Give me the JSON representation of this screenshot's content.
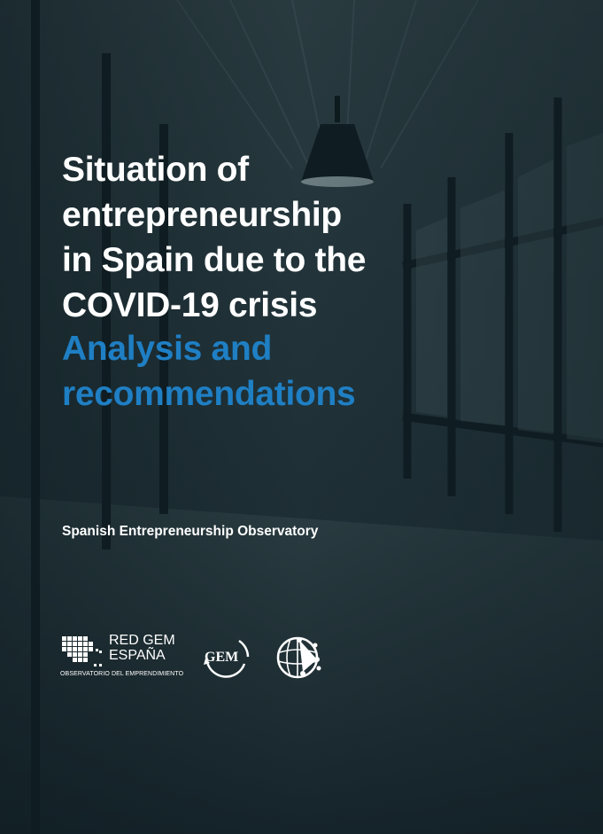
{
  "cover": {
    "title_lines": [
      "Situation of",
      "entrepreneurship",
      "in Spain due to the",
      "COVID-19 crisis"
    ],
    "subtitle_lines": [
      "Analysis and",
      "recommendations"
    ],
    "organization": "Spanish Entrepreneurship Observatory",
    "colors": {
      "title": "#ffffff",
      "subtitle": "#1f7fc4",
      "background": "#1e2f35"
    }
  },
  "logos": {
    "redgem": {
      "line1": "RED GEM",
      "line2": "ESPAÑA",
      "tagline": "OBSERVATORIO DEL EMPRENDIMIENTO"
    },
    "gem": {
      "text": "GEM"
    },
    "globe": {
      "icon": "globe-network-icon"
    }
  }
}
